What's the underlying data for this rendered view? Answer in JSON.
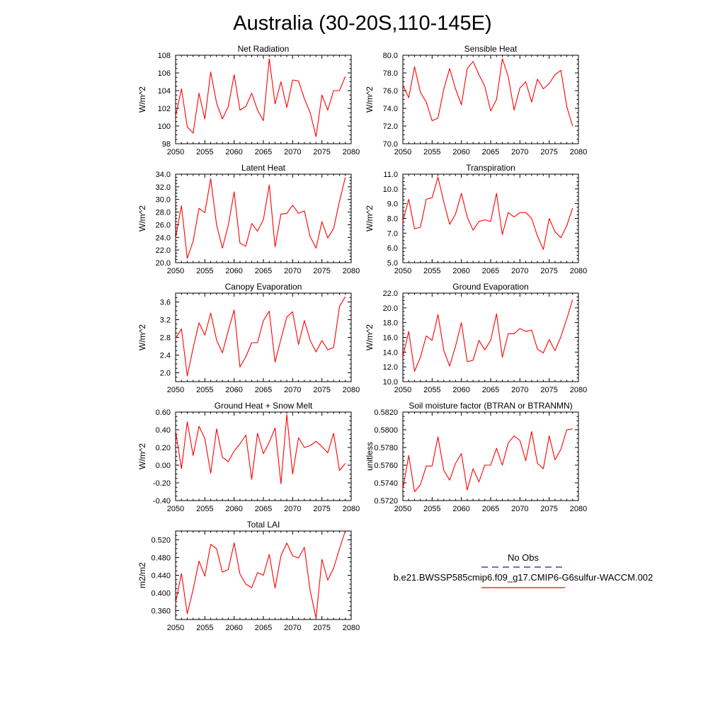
{
  "page_title": "Australia (30-20S,110-145E)",
  "legend": {
    "obs_label": "No Obs",
    "obs_color": "#1a1aa8",
    "case_label": "b.e21.BWSSP585cmip6.f09_g17.CMIP6-G6sulfur-WACCM.002",
    "case_color": "#ff0000"
  },
  "chart_data": [
    {
      "type": "line",
      "title": "Net Radiation",
      "ylabel": "W/m^2",
      "xlim": [
        2050,
        2080
      ],
      "ylim": [
        98,
        108
      ],
      "xticks": [
        2050,
        2055,
        2060,
        2065,
        2070,
        2075,
        2080
      ],
      "yticks": [
        98,
        100,
        102,
        104,
        106,
        108
      ],
      "ytick_labels": [
        "98",
        "100",
        "102",
        "104",
        "106",
        "108"
      ],
      "series": [
        {
          "color": "#ff0000",
          "x": [
            2050,
            2051,
            2052,
            2053,
            2054,
            2055,
            2056,
            2057,
            2058,
            2059,
            2060,
            2061,
            2062,
            2063,
            2064,
            2065,
            2066,
            2067,
            2068,
            2069,
            2070,
            2071,
            2072,
            2073,
            2074,
            2075,
            2076,
            2077,
            2078,
            2079
          ],
          "values": [
            101.1,
            104.2,
            99.9,
            99.2,
            103.7,
            100.8,
            106.1,
            102.6,
            100.8,
            102.2,
            105.8,
            101.8,
            102.2,
            103.7,
            101.8,
            100.6,
            107.6,
            102.5,
            105.0,
            102.1,
            105.2,
            105.1,
            103.1,
            101.5,
            98.8,
            103.5,
            101.8,
            104.0,
            104.0,
            105.6
          ]
        }
      ]
    },
    {
      "type": "line",
      "title": "Sensible Heat",
      "ylabel": "W/m^2",
      "xlim": [
        2050,
        2080
      ],
      "ylim": [
        70,
        80
      ],
      "xticks": [
        2050,
        2055,
        2060,
        2065,
        2070,
        2075,
        2080
      ],
      "yticks": [
        70,
        72,
        74,
        76,
        78,
        80
      ],
      "ytick_labels": [
        "70.0",
        "72.0",
        "74.0",
        "76.0",
        "78.0",
        "80.0"
      ],
      "series": [
        {
          "color": "#ff0000",
          "x": [
            2050,
            2051,
            2052,
            2053,
            2054,
            2055,
            2056,
            2057,
            2058,
            2059,
            2060,
            2061,
            2062,
            2063,
            2064,
            2065,
            2066,
            2067,
            2068,
            2069,
            2070,
            2071,
            2072,
            2073,
            2074,
            2075,
            2076,
            2077,
            2078,
            2079
          ],
          "values": [
            76.6,
            75.2,
            78.7,
            75.8,
            74.7,
            72.6,
            72.9,
            76.2,
            78.5,
            76.2,
            74.4,
            78.5,
            79.3,
            77.8,
            76.5,
            73.7,
            75.0,
            79.6,
            77.6,
            73.8,
            76.3,
            77.0,
            74.7,
            77.3,
            76.2,
            76.8,
            77.8,
            78.3,
            74.2,
            72.0
          ]
        }
      ]
    },
    {
      "type": "line",
      "title": "Latent Heat",
      "ylabel": "W/m^2",
      "xlim": [
        2050,
        2080
      ],
      "ylim": [
        20,
        34
      ],
      "xticks": [
        2050,
        2055,
        2060,
        2065,
        2070,
        2075,
        2080
      ],
      "yticks": [
        20,
        22,
        24,
        26,
        28,
        30,
        32,
        34
      ],
      "ytick_labels": [
        "20.0",
        "22.0",
        "24.0",
        "26.0",
        "28.0",
        "30.0",
        "32.0",
        "34.0"
      ],
      "series": [
        {
          "color": "#ff0000",
          "x": [
            2050,
            2051,
            2052,
            2053,
            2054,
            2055,
            2056,
            2057,
            2058,
            2059,
            2060,
            2061,
            2062,
            2063,
            2064,
            2065,
            2066,
            2067,
            2068,
            2069,
            2070,
            2071,
            2072,
            2073,
            2074,
            2075,
            2076,
            2077,
            2078,
            2079
          ],
          "values": [
            23.9,
            29.0,
            20.7,
            23.4,
            28.6,
            27.9,
            33.3,
            26.0,
            22.3,
            25.9,
            31.2,
            23.1,
            22.6,
            26.2,
            25.0,
            26.8,
            32.3,
            22.5,
            27.7,
            27.8,
            29.1,
            27.8,
            28.2,
            24.1,
            22.3,
            26.5,
            23.9,
            25.4,
            29.7,
            33.5
          ]
        }
      ]
    },
    {
      "type": "line",
      "title": "Transpiration",
      "ylabel": "W/m^2",
      "xlim": [
        2050,
        2080
      ],
      "ylim": [
        5,
        11
      ],
      "xticks": [
        2050,
        2055,
        2060,
        2065,
        2070,
        2075,
        2080
      ],
      "yticks": [
        5,
        6,
        7,
        8,
        9,
        10,
        11
      ],
      "ytick_labels": [
        "5.0",
        "6.0",
        "7.0",
        "8.0",
        "9.0",
        "10.0",
        "11.0"
      ],
      "series": [
        {
          "color": "#ff0000",
          "x": [
            2050,
            2051,
            2052,
            2053,
            2054,
            2055,
            2056,
            2057,
            2058,
            2059,
            2060,
            2061,
            2062,
            2063,
            2064,
            2065,
            2066,
            2067,
            2068,
            2069,
            2070,
            2071,
            2072,
            2073,
            2074,
            2075,
            2076,
            2077,
            2078,
            2079
          ],
          "values": [
            7.8,
            9.3,
            7.3,
            7.4,
            9.3,
            9.4,
            10.8,
            9.1,
            7.6,
            8.3,
            9.7,
            8.1,
            7.2,
            7.8,
            7.9,
            7.8,
            9.7,
            6.9,
            8.4,
            8.1,
            8.4,
            8.4,
            8.0,
            6.8,
            5.9,
            8.0,
            7.1,
            6.7,
            7.5,
            8.7
          ]
        }
      ]
    },
    {
      "type": "line",
      "title": "Canopy Evaporation",
      "ylabel": "W/m^2",
      "xlim": [
        2050,
        2080
      ],
      "ylim": [
        1.8,
        3.8
      ],
      "xticks": [
        2050,
        2055,
        2060,
        2065,
        2070,
        2075,
        2080
      ],
      "yticks": [
        2.0,
        2.4,
        2.8,
        3.2,
        3.6
      ],
      "ytick_labels": [
        "2.0",
        "2.4",
        "2.8",
        "3.2",
        "3.6"
      ],
      "series": [
        {
          "color": "#ff0000",
          "x": [
            2050,
            2051,
            2052,
            2053,
            2054,
            2055,
            2056,
            2057,
            2058,
            2059,
            2060,
            2061,
            2062,
            2063,
            2064,
            2065,
            2066,
            2067,
            2068,
            2069,
            2070,
            2071,
            2072,
            2073,
            2074,
            2075,
            2076,
            2077,
            2078,
            2079
          ],
          "values": [
            2.78,
            2.99,
            1.93,
            2.56,
            3.13,
            2.85,
            3.35,
            2.74,
            2.45,
            2.95,
            3.42,
            2.13,
            2.36,
            2.68,
            2.68,
            3.18,
            3.39,
            2.24,
            2.76,
            3.26,
            3.38,
            2.64,
            3.18,
            2.73,
            2.47,
            2.73,
            2.52,
            2.57,
            3.5,
            3.72
          ]
        }
      ]
    },
    {
      "type": "line",
      "title": "Ground Evaporation",
      "ylabel": "W/m^2",
      "xlim": [
        2050,
        2080
      ],
      "ylim": [
        10,
        22
      ],
      "xticks": [
        2050,
        2055,
        2060,
        2065,
        2070,
        2075,
        2080
      ],
      "yticks": [
        10,
        12,
        14,
        16,
        18,
        20,
        22
      ],
      "ytick_labels": [
        "10.0",
        "12.0",
        "14.0",
        "16.0",
        "18.0",
        "20.0",
        "22.0"
      ],
      "series": [
        {
          "color": "#ff0000",
          "x": [
            2050,
            2051,
            2052,
            2053,
            2054,
            2055,
            2056,
            2057,
            2058,
            2059,
            2060,
            2061,
            2062,
            2063,
            2064,
            2065,
            2066,
            2067,
            2068,
            2069,
            2070,
            2071,
            2072,
            2073,
            2074,
            2075,
            2076,
            2077,
            2078,
            2079
          ],
          "values": [
            13.4,
            16.8,
            11.4,
            13.3,
            16.2,
            15.6,
            19.1,
            14.2,
            12.1,
            14.8,
            18.0,
            12.7,
            12.9,
            15.6,
            14.3,
            15.6,
            19.2,
            13.3,
            16.5,
            16.5,
            17.2,
            16.8,
            17.0,
            14.4,
            13.9,
            15.7,
            14.2,
            16.1,
            18.5,
            21.1
          ]
        }
      ]
    },
    {
      "type": "line",
      "title": "Ground Heat + Snow Melt",
      "ylabel": "W/m^2",
      "xlim": [
        2050,
        2080
      ],
      "ylim": [
        -0.4,
        0.6
      ],
      "xticks": [
        2050,
        2055,
        2060,
        2065,
        2070,
        2075,
        2080
      ],
      "yticks": [
        -0.4,
        -0.2,
        0.0,
        0.2,
        0.4,
        0.6
      ],
      "ytick_labels": [
        "-0.40",
        "-0.20",
        "0.00",
        "0.20",
        "0.40",
        "0.60"
      ],
      "series": [
        {
          "color": "#ff0000",
          "x": [
            2050,
            2051,
            2052,
            2053,
            2054,
            2055,
            2056,
            2057,
            2058,
            2059,
            2060,
            2061,
            2062,
            2063,
            2064,
            2065,
            2066,
            2067,
            2068,
            2069,
            2070,
            2071,
            2072,
            2073,
            2074,
            2075,
            2076,
            2077,
            2078,
            2079
          ],
          "values": [
            0.39,
            -0.04,
            0.49,
            0.11,
            0.44,
            0.3,
            -0.09,
            0.41,
            0.09,
            0.04,
            0.16,
            0.24,
            0.34,
            -0.16,
            0.36,
            0.13,
            0.26,
            0.42,
            -0.21,
            0.57,
            -0.1,
            0.31,
            0.2,
            0.22,
            0.27,
            0.21,
            0.14,
            0.36,
            -0.06,
            0.02
          ]
        }
      ]
    },
    {
      "type": "line",
      "title": "Soil moisture factor (BTRAN or BTRANMN)",
      "ylabel": "unitless",
      "xlim": [
        2050,
        2080
      ],
      "ylim": [
        0.572,
        0.582
      ],
      "xticks": [
        2050,
        2055,
        2060,
        2065,
        2070,
        2075,
        2080
      ],
      "yticks": [
        0.572,
        0.574,
        0.576,
        0.578,
        0.58,
        0.582
      ],
      "ytick_labels": [
        "0.5720",
        "0.5740",
        "0.5760",
        "0.5780",
        "0.5800",
        "0.5820"
      ],
      "series": [
        {
          "color": "#ff0000",
          "x": [
            2050,
            2051,
            2052,
            2053,
            2054,
            2055,
            2056,
            2057,
            2058,
            2059,
            2060,
            2061,
            2062,
            2063,
            2064,
            2065,
            2066,
            2067,
            2068,
            2069,
            2070,
            2071,
            2072,
            2073,
            2074,
            2075,
            2076,
            2077,
            2078,
            2079
          ],
          "values": [
            0.5733,
            0.5771,
            0.573,
            0.5738,
            0.5759,
            0.5759,
            0.5792,
            0.5754,
            0.5743,
            0.5762,
            0.5773,
            0.5732,
            0.5756,
            0.5741,
            0.576,
            0.576,
            0.5779,
            0.576,
            0.5785,
            0.5793,
            0.5788,
            0.5765,
            0.5798,
            0.5762,
            0.5756,
            0.5793,
            0.5766,
            0.5778,
            0.58,
            0.5801
          ]
        }
      ]
    },
    {
      "type": "line",
      "title": "Total LAI",
      "ylabel": "m2/m2",
      "xlim": [
        2050,
        2080
      ],
      "ylim": [
        0.34,
        0.54
      ],
      "xticks": [
        2050,
        2055,
        2060,
        2065,
        2070,
        2075,
        2080
      ],
      "yticks": [
        0.36,
        0.4,
        0.44,
        0.48,
        0.52
      ],
      "ytick_labels": [
        "0.360",
        "0.400",
        "0.440",
        "0.480",
        "0.520"
      ],
      "series": [
        {
          "color": "#ff0000",
          "x": [
            2050,
            2051,
            2052,
            2053,
            2054,
            2055,
            2056,
            2057,
            2058,
            2059,
            2060,
            2061,
            2062,
            2063,
            2064,
            2065,
            2066,
            2067,
            2068,
            2069,
            2070,
            2071,
            2072,
            2073,
            2074,
            2075,
            2076,
            2077,
            2078,
            2079
          ],
          "values": [
            0.378,
            0.444,
            0.353,
            0.408,
            0.472,
            0.438,
            0.51,
            0.5,
            0.447,
            0.453,
            0.513,
            0.443,
            0.42,
            0.412,
            0.446,
            0.44,
            0.487,
            0.411,
            0.484,
            0.513,
            0.484,
            0.479,
            0.503,
            0.405,
            0.343,
            0.476,
            0.429,
            0.456,
            0.5,
            0.54
          ]
        }
      ]
    }
  ]
}
